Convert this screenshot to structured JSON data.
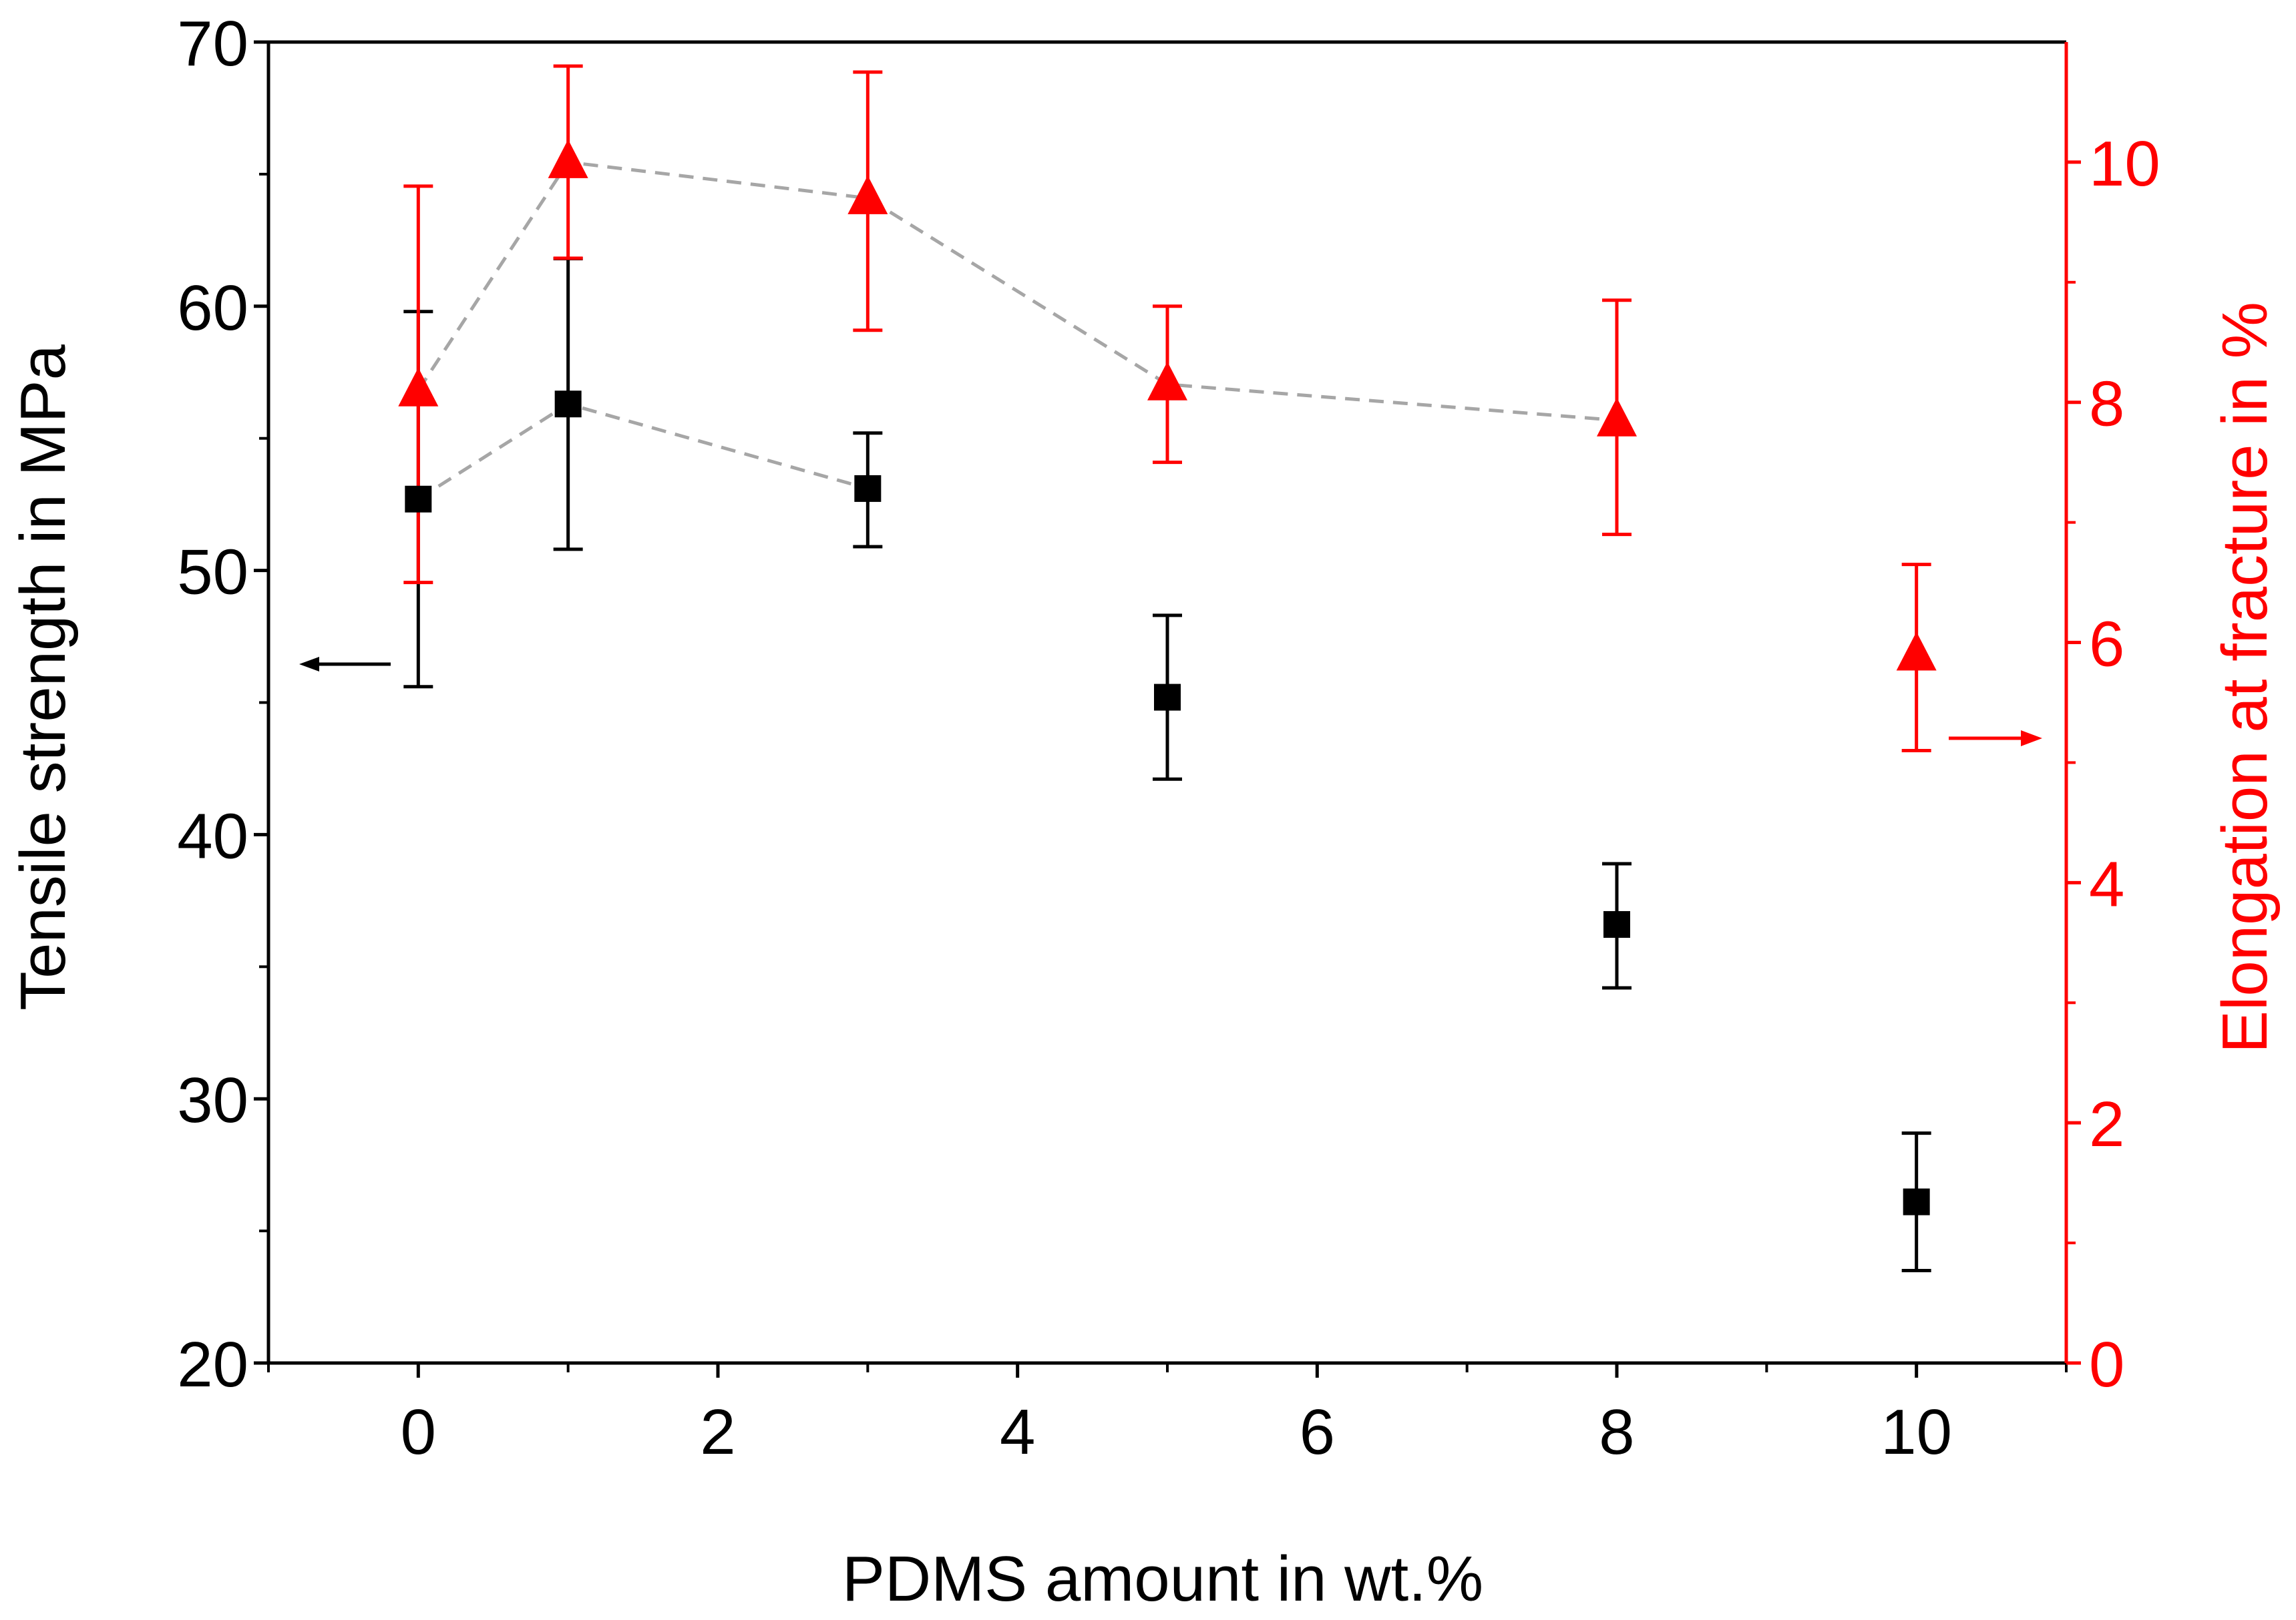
{
  "chart_data": {
    "type": "scatter",
    "xlabel": "PDMS amount in wt.%",
    "ylabel": "Tensile strength in MPa",
    "y2label": "Elongation at fracture in %",
    "xlim": [
      -1,
      11
    ],
    "ylim": [
      20,
      70
    ],
    "y2lim": [
      0,
      11
    ],
    "xticks": [
      0,
      2,
      4,
      6,
      8,
      10
    ],
    "xtick_labels": [
      "0",
      "2",
      "4",
      "6",
      "8",
      "10"
    ],
    "yticks": [
      20,
      30,
      40,
      50,
      60,
      70
    ],
    "ytick_labels": [
      "20",
      "30",
      "40",
      "50",
      "60",
      "70"
    ],
    "y2ticks": [
      0,
      2,
      4,
      6,
      8,
      10
    ],
    "y2tick_labels": [
      "0",
      "2",
      "4",
      "6",
      "8",
      "10"
    ],
    "colors": {
      "tensile": "#000000",
      "elongation": "#ff0000",
      "connector": "#a6a6a6"
    },
    "series": [
      {
        "name": "Tensile strength",
        "axis": "left",
        "marker": "square",
        "x": [
          0,
          1,
          3,
          5,
          8,
          10
        ],
        "values": [
          52.7,
          56.3,
          53.1,
          45.2,
          36.6,
          26.1
        ],
        "err_low": [
          45.6,
          50.8,
          50.9,
          42.1,
          34.2,
          23.5
        ],
        "err_high": [
          59.8,
          61.8,
          55.2,
          48.3,
          38.9,
          28.7
        ],
        "connect_x": [
          0,
          1,
          3
        ]
      },
      {
        "name": "Elongation at fracture",
        "axis": "right",
        "marker": "triangle",
        "x": [
          0,
          1,
          3,
          5,
          8,
          10
        ],
        "values": [
          8.1,
          10.0,
          9.7,
          8.15,
          7.85,
          5.9
        ],
        "err_low": [
          6.5,
          9.2,
          8.6,
          7.5,
          6.9,
          5.1
        ],
        "err_high": [
          9.8,
          10.8,
          10.75,
          8.8,
          8.85,
          6.65
        ],
        "connect_x": [
          0,
          1,
          3,
          5,
          8
        ]
      }
    ],
    "annotations": [
      {
        "type": "arrow",
        "direction": "left",
        "points_to": "left-axis",
        "color": "#000000"
      },
      {
        "type": "arrow",
        "direction": "right",
        "points_to": "right-axis",
        "color": "#ff0000"
      }
    ]
  }
}
